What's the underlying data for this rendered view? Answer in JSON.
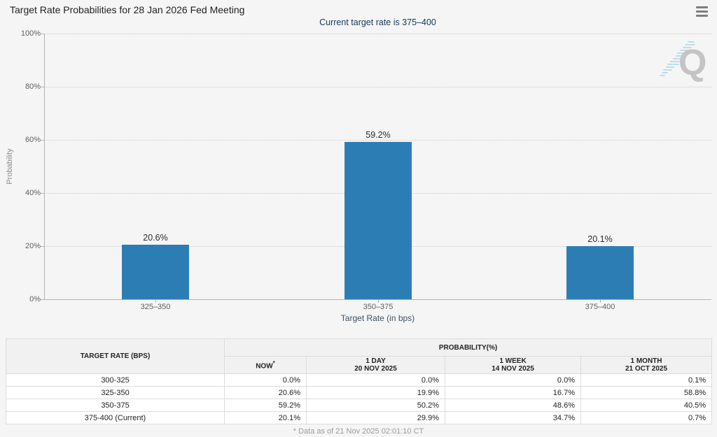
{
  "page": {
    "title": "Target Rate Probabilities for 28 Jan 2026 Fed Meeting",
    "subtitle": "Current target rate is 375–400"
  },
  "watermark": {
    "letter": "Q"
  },
  "chart_data": {
    "type": "bar",
    "title": "Target Rate Probabilities for 28 Jan 2026 Fed Meeting",
    "subtitle": "Current target rate is 375–400",
    "categories": [
      "325–350",
      "350–375",
      "375–400"
    ],
    "values": [
      20.6,
      59.2,
      20.1
    ],
    "value_labels": [
      "20.6%",
      "59.2%",
      "20.1%"
    ],
    "xlabel": "Target Rate (in bps)",
    "ylabel": "Probability",
    "ylim": [
      0,
      100
    ],
    "yticks": [
      "0%",
      "20%",
      "40%",
      "60%",
      "80%",
      "100%"
    ],
    "grid": "dotted-horizontal",
    "legend": "none",
    "bar_color": "#2d7db5"
  },
  "table": {
    "rate_header": "TARGET RATE (BPS)",
    "group_header": "PROBABILITY(%)",
    "columns": [
      {
        "label": "NOW",
        "sup": "*",
        "date": ""
      },
      {
        "label": "1 DAY",
        "date": "20 NOV 2025"
      },
      {
        "label": "1 WEEK",
        "date": "14 NOV 2025"
      },
      {
        "label": "1 MONTH",
        "date": "21 OCT 2025"
      }
    ],
    "rows": [
      {
        "rate": "300-325",
        "values": [
          "0.0%",
          "0.0%",
          "0.0%",
          "0.1%"
        ]
      },
      {
        "rate": "325-350",
        "values": [
          "20.6%",
          "19.9%",
          "16.7%",
          "58.8%"
        ]
      },
      {
        "rate": "350-375",
        "values": [
          "59.2%",
          "50.2%",
          "48.6%",
          "40.5%"
        ]
      },
      {
        "rate": "375-400 (Current)",
        "values": [
          "20.1%",
          "29.9%",
          "34.7%",
          "0.7%"
        ]
      }
    ],
    "highlight_color": "#fafad2"
  },
  "footer": {
    "note": "* Data as of 21 Nov 2025 02:01:10 CT"
  }
}
